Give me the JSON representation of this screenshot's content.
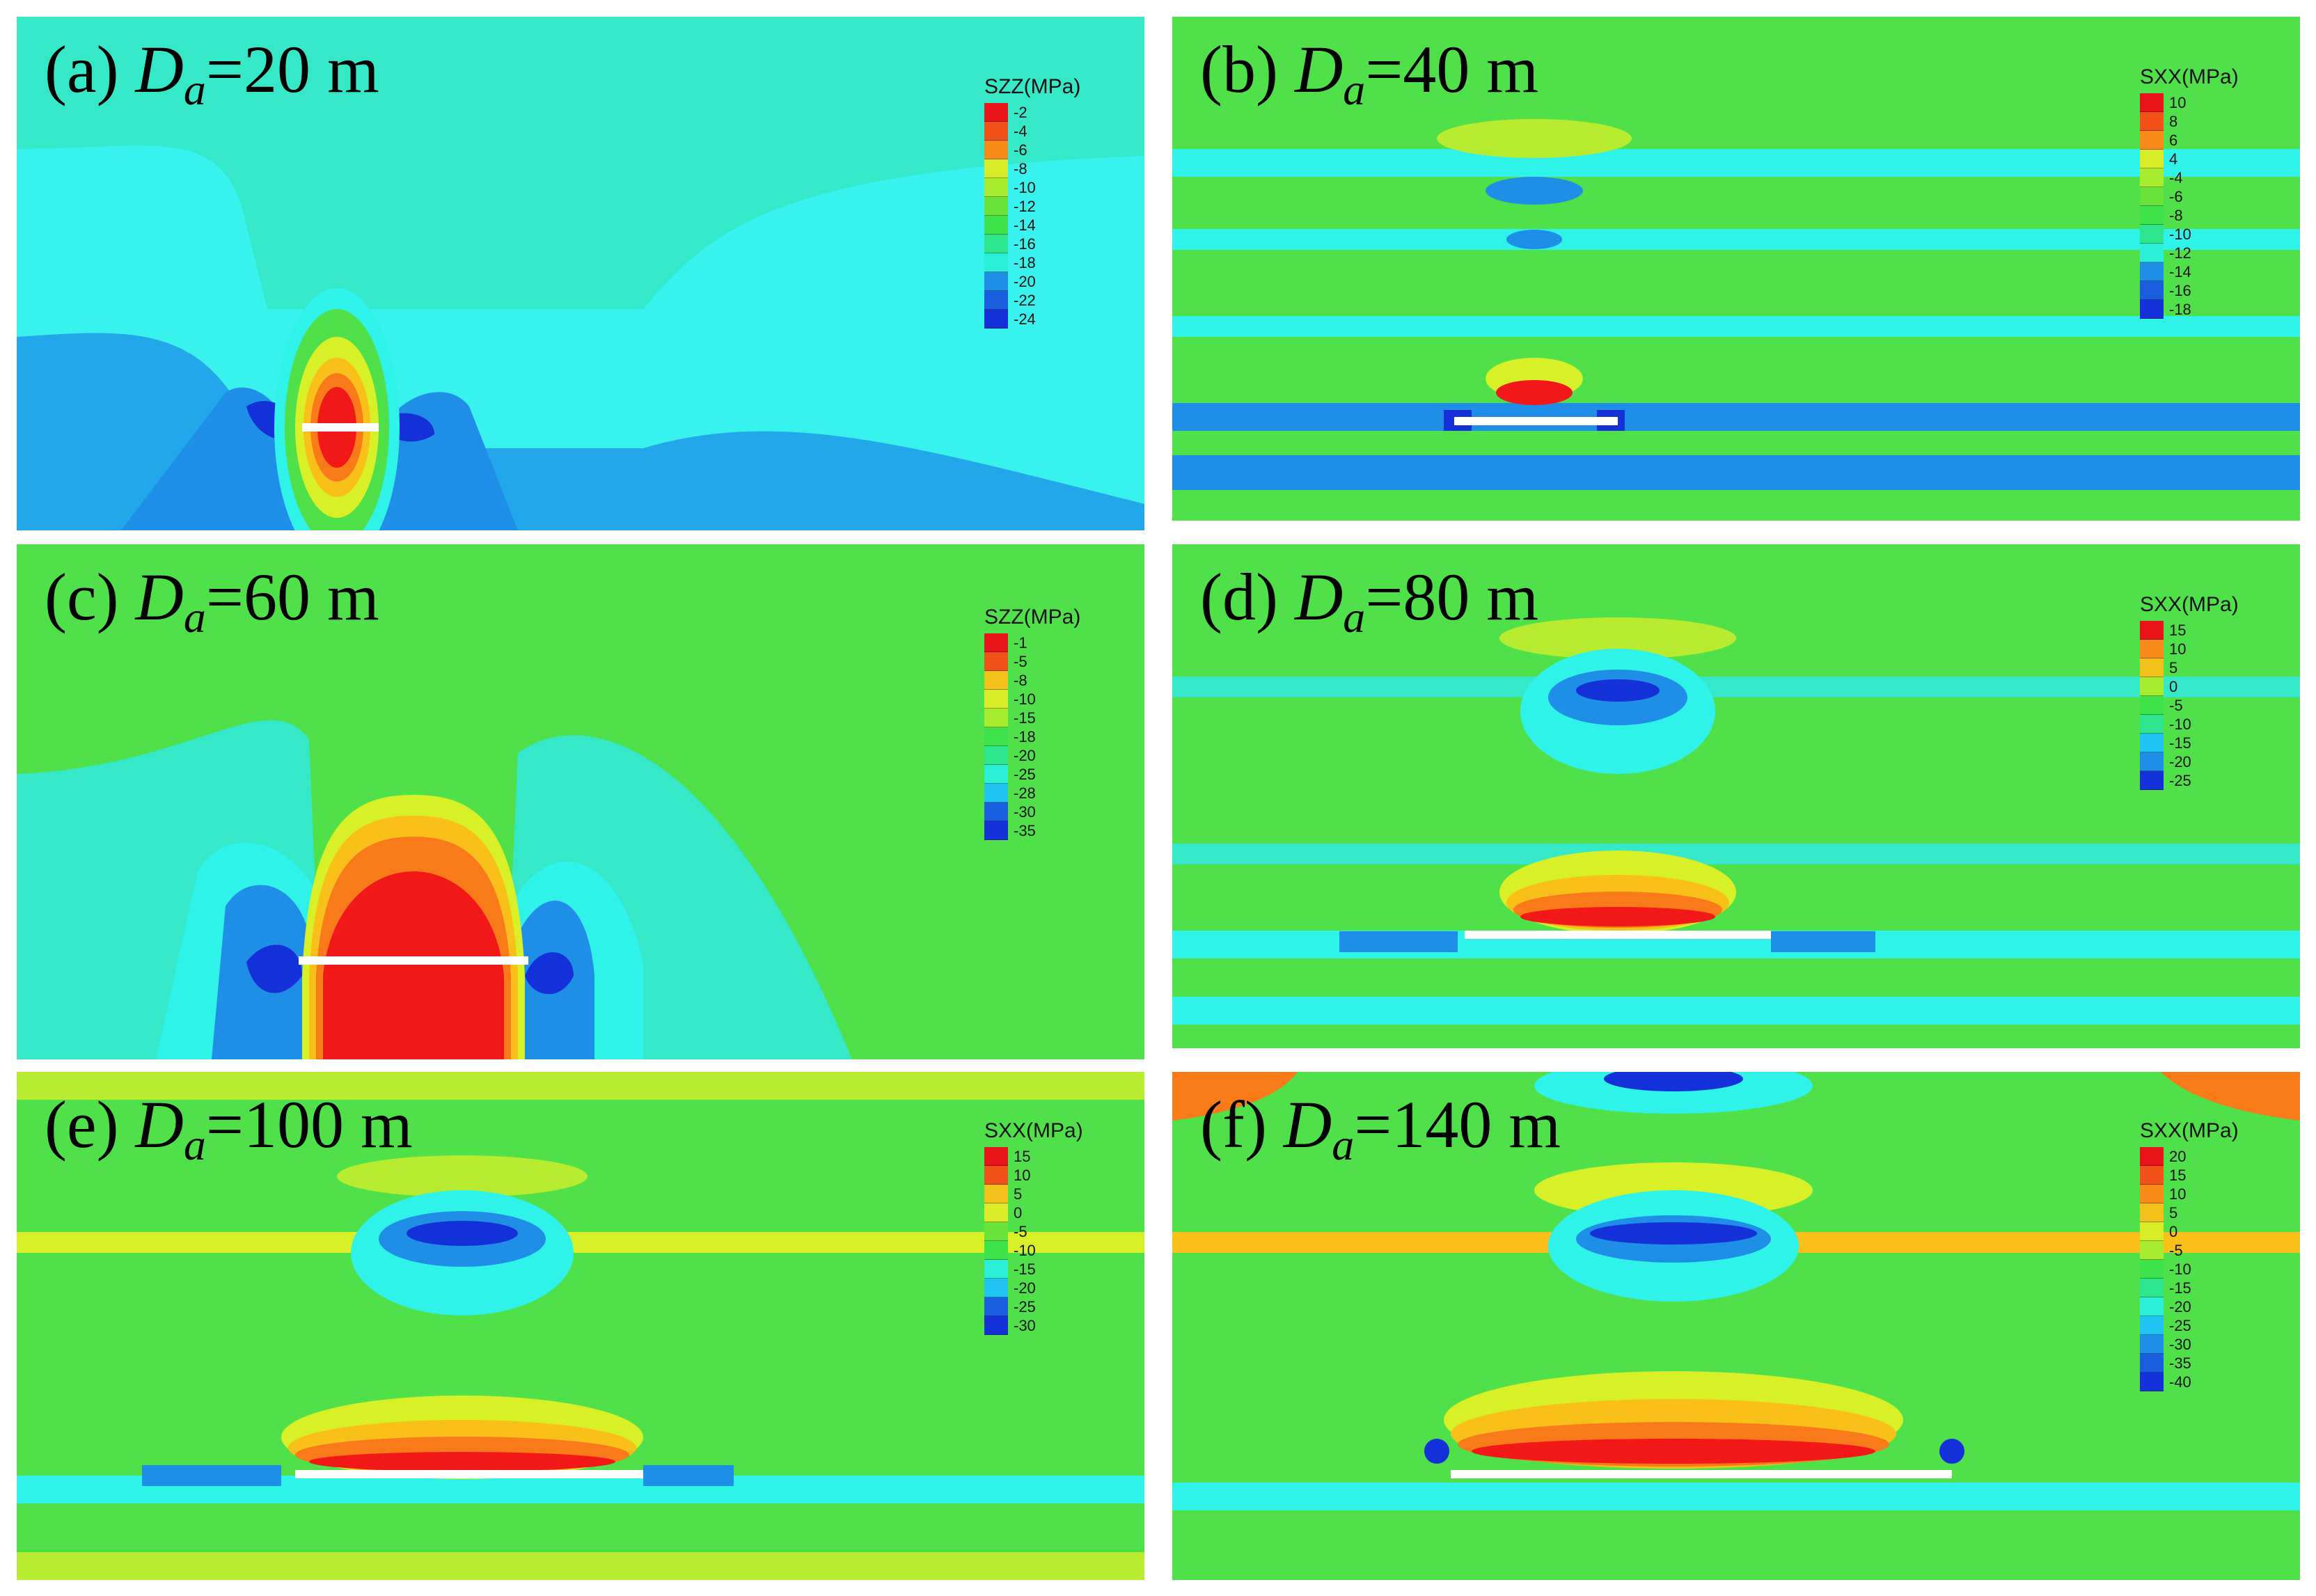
{
  "colors": {
    "background_green": "#4fe04a",
    "cyan": "#2ff2e8",
    "deep_blue": "#1430d8",
    "mid_blue": "#1e8ee6",
    "red": "#f21818",
    "orange": "#f87a18",
    "yellow": "#d8f028",
    "slit": "#ffffff"
  },
  "panels": [
    {
      "id": "a",
      "label_prefix": "(a) ",
      "symbol": "D",
      "subscript": "a",
      "label_value": "=20 m",
      "legend_title": "SZZ(MPa)",
      "legend_values": [
        "-2",
        "-4",
        "-6",
        "-8",
        "-10",
        "-12",
        "-14",
        "-16",
        "-18",
        "-20",
        "-22",
        "-24"
      ]
    },
    {
      "id": "b",
      "label_prefix": "(b) ",
      "symbol": "D",
      "subscript": "a",
      "label_value": "=40 m",
      "legend_title": "SXX(MPa)",
      "legend_values": [
        "10",
        "8",
        "6",
        "4",
        "-4",
        "-6",
        "-8",
        "-10",
        "-12",
        "-14",
        "-16",
        "-18"
      ]
    },
    {
      "id": "c",
      "label_prefix": "(c) ",
      "symbol": "D",
      "subscript": "a",
      "label_value": "=60 m",
      "legend_title": "SZZ(MPa)",
      "legend_values": [
        "-1",
        "-5",
        "-8",
        "-10",
        "-15",
        "-18",
        "-20",
        "-25",
        "-28",
        "-30",
        "-35"
      ]
    },
    {
      "id": "d",
      "label_prefix": "(d) ",
      "symbol": "D",
      "subscript": "a",
      "label_value": "=80 m",
      "legend_title": "SXX(MPa)",
      "legend_values": [
        "15",
        "10",
        "5",
        "0",
        "-5",
        "-10",
        "-15",
        "-20",
        "-25"
      ]
    },
    {
      "id": "e",
      "label_prefix": "(e) ",
      "symbol": "D",
      "subscript": "a",
      "label_value": "=100 m",
      "legend_title": "SXX(MPa)",
      "legend_values": [
        "15",
        "10",
        "5",
        "0",
        "-5",
        "-10",
        "-15",
        "-20",
        "-25",
        "-30"
      ]
    },
    {
      "id": "f",
      "label_prefix": "(f) ",
      "symbol": "D",
      "subscript": "a",
      "label_value": "=140 m",
      "legend_title": "SXX(MPa)",
      "legend_values": [
        "20",
        "15",
        "10",
        "5",
        "0",
        "-5",
        "-10",
        "-15",
        "-20",
        "-25",
        "-30",
        "-35",
        "-40"
      ]
    }
  ]
}
